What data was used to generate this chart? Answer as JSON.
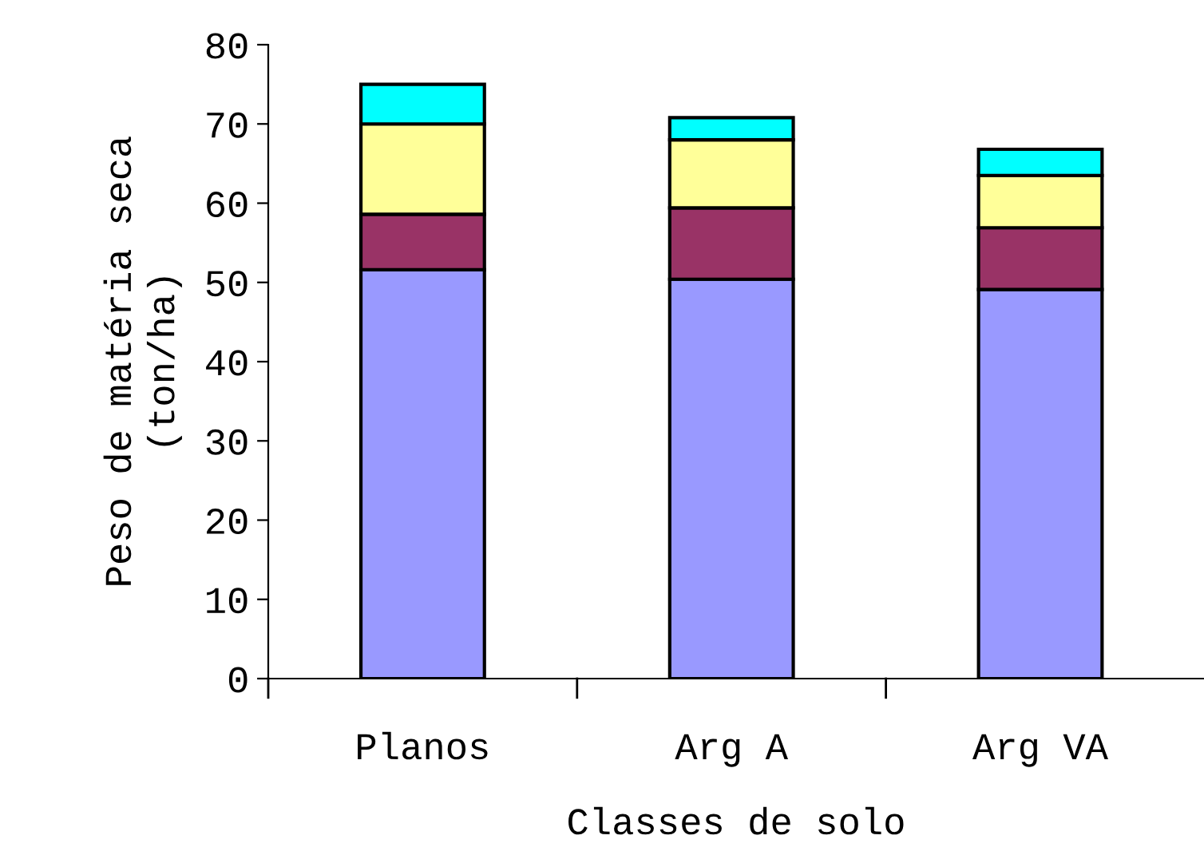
{
  "chart_data": {
    "type": "bar",
    "stacked": true,
    "xlabel": "Classes de solo",
    "ylabel": "Peso de matéria seca\n(ton/ha)",
    "categories": [
      "Planos",
      "Arg A",
      "Arg VA"
    ],
    "series": [
      {
        "color": "#9999ff",
        "values": [
          51.6,
          50.4,
          49.1
        ]
      },
      {
        "color": "#993366",
        "values": [
          7.0,
          9.0,
          7.8
        ]
      },
      {
        "color": "#ffff99",
        "values": [
          11.4,
          8.6,
          6.6
        ]
      },
      {
        "color": "#00ffff",
        "values": [
          5.0,
          2.8,
          3.3
        ]
      }
    ],
    "ylim": [
      0,
      80
    ],
    "yticks": [
      0,
      10,
      20,
      30,
      40,
      50,
      60,
      70,
      80
    ],
    "grid": false,
    "legend": false
  }
}
